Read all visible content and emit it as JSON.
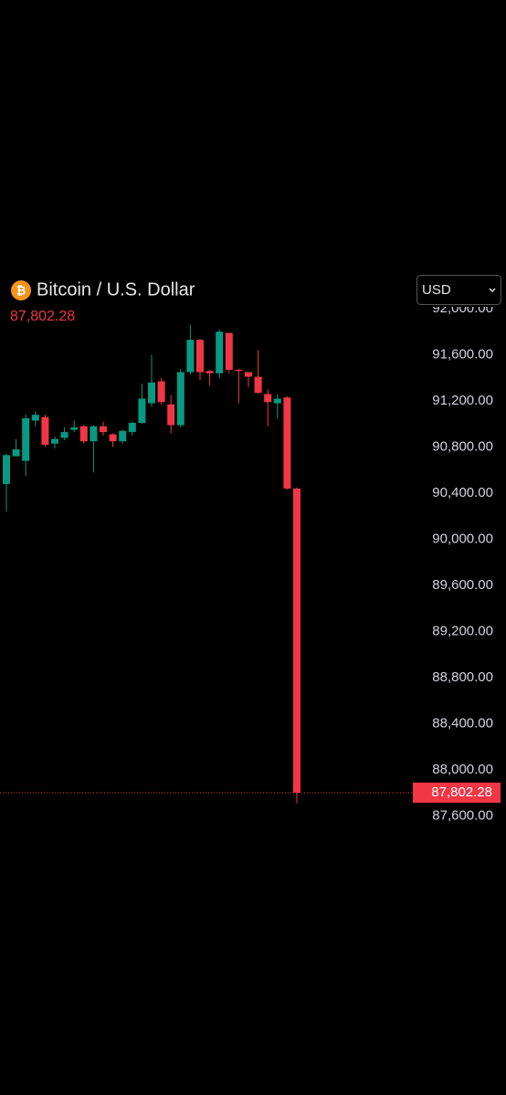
{
  "chart_data": {
    "type": "candlestick",
    "title": "Bitcoin / U.S. Dollar",
    "currency": "USD",
    "last_price": {
      "value": 87802.28,
      "label": "87,802.28"
    },
    "up_color": "#089981",
    "down_color": "#f23645",
    "ylim": [
      86994,
      92024
    ],
    "yticks": [
      {
        "value": 87600,
        "label": "87,600.00"
      },
      {
        "value": 88000,
        "label": "88,000.00"
      },
      {
        "value": 88400,
        "label": "88,400.00"
      },
      {
        "value": 88800,
        "label": "88,800.00"
      },
      {
        "value": 89200,
        "label": "89,200.00"
      },
      {
        "value": 89600,
        "label": "89,600.00"
      },
      {
        "value": 90000,
        "label": "90,000.00"
      },
      {
        "value": 90400,
        "label": "90,400.00"
      },
      {
        "value": 90800,
        "label": "90,800.00"
      },
      {
        "value": 91200,
        "label": "91,200.00"
      },
      {
        "value": 91600,
        "label": "91,600.00"
      },
      {
        "value": 92000,
        "label": "92,000.00"
      }
    ],
    "open": [
      90480,
      90720,
      90680,
      91030,
      91060,
      90830,
      90880,
      90950,
      90980,
      90850,
      90980,
      90910,
      90850,
      90930,
      91010,
      91180,
      91370,
      91170,
      90990,
      91450,
      91730,
      91460,
      91440,
      91790,
      91470,
      91450,
      91410,
      91260,
      91180,
      91230,
      90440
    ],
    "high": [
      90740,
      90870,
      91080,
      91110,
      91080,
      90890,
      90970,
      91030,
      90990,
      90990,
      91020,
      90920,
      90950,
      91020,
      91350,
      91600,
      91400,
      91250,
      91480,
      91860,
      91740,
      91470,
      91820,
      91790,
      91480,
      91450,
      91640,
      91300,
      91260,
      91240,
      90450
    ],
    "low": [
      90240,
      90720,
      90550,
      90980,
      90800,
      90790,
      90860,
      90930,
      90830,
      90580,
      90900,
      90800,
      90830,
      90900,
      91000,
      91150,
      91170,
      90920,
      90970,
      91430,
      91380,
      91330,
      91400,
      91440,
      91180,
      91320,
      91260,
      90980,
      91050,
      90430,
      87710
    ],
    "close": [
      90730,
      90780,
      91050,
      91080,
      90820,
      90870,
      90930,
      90970,
      90850,
      90980,
      90930,
      90850,
      90940,
      91010,
      91220,
      91360,
      91190,
      90990,
      91450,
      91730,
      91450,
      91440,
      91800,
      91470,
      91460,
      91410,
      91270,
      91190,
      91220,
      90440,
      87802.28
    ]
  }
}
